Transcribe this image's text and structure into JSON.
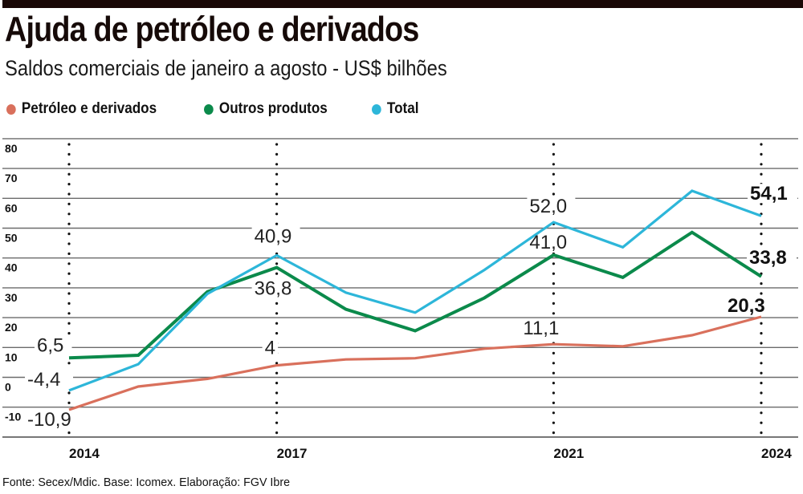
{
  "header": {
    "title": "Ajuda de petróleo e derivados",
    "subtitle": "Saldos comerciais de janeiro a agosto -  US$ bilhões"
  },
  "footer": {
    "source": "Fonte: Secex/Mdic. Base: Icomex. Elaboração: FGV Ibre"
  },
  "chart_data": {
    "type": "line",
    "title": "Ajuda de petróleo e derivados",
    "subtitle": "Saldos comerciais de janeiro a agosto - US$ bilhões",
    "xlabel": "",
    "ylabel": "US$ bilhões",
    "x": [
      2014,
      2015,
      2016,
      2017,
      2018,
      2019,
      2020,
      2021,
      2022,
      2023,
      2024
    ],
    "x_tick_labels": [
      "2014",
      "2017",
      "2021",
      "2024"
    ],
    "x_highlight_years": [
      2014,
      2017,
      2021,
      2024
    ],
    "y_ticks": [
      80,
      70,
      60,
      50,
      40,
      30,
      20,
      10,
      0,
      -10
    ],
    "y_tick_labels": [
      "80",
      "70",
      "60",
      "50",
      "40",
      "30",
      "20",
      "10",
      "0",
      "-10"
    ],
    "ylim": [
      -20,
      80
    ],
    "grid": true,
    "legend_position": "top-left",
    "series": [
      {
        "name": "Petróleo e derivados",
        "color": "#d9705c",
        "values": [
          -10.9,
          -3.1,
          -0.5,
          4.0,
          6.0,
          6.4,
          9.6,
          11.1,
          10.4,
          14.1,
          20.3
        ],
        "labels": [
          {
            "year": 2014,
            "text": "-10,9",
            "bold": false
          },
          {
            "year": 2017,
            "text": "4",
            "bold": false
          },
          {
            "year": 2021,
            "text": "11,1",
            "bold": false
          },
          {
            "year": 2024,
            "text": "20,3",
            "bold": true
          }
        ]
      },
      {
        "name": "Outros produtos",
        "color": "#0b8a4b",
        "values": [
          6.5,
          7.4,
          28.7,
          36.8,
          22.8,
          15.6,
          26.6,
          41.0,
          33.5,
          48.6,
          33.8
        ],
        "labels": [
          {
            "year": 2014,
            "text": "6,5",
            "bold": false
          },
          {
            "year": 2017,
            "text": "36,8",
            "bold": false
          },
          {
            "year": 2021,
            "text": "41,0",
            "bold": false
          },
          {
            "year": 2024,
            "text": "33,8",
            "bold": true
          }
        ]
      },
      {
        "name": "Total",
        "color": "#2db6d9",
        "values": [
          -4.4,
          4.4,
          28.0,
          40.9,
          28.4,
          21.7,
          36.0,
          52.0,
          43.6,
          62.5,
          54.1
        ],
        "labels": [
          {
            "year": 2014,
            "text": "-4,4",
            "bold": false
          },
          {
            "year": 2017,
            "text": "40,9",
            "bold": false
          },
          {
            "year": 2021,
            "text": "52,0",
            "bold": false
          },
          {
            "year": 2024,
            "text": "54,1",
            "bold": true
          }
        ]
      }
    ]
  }
}
